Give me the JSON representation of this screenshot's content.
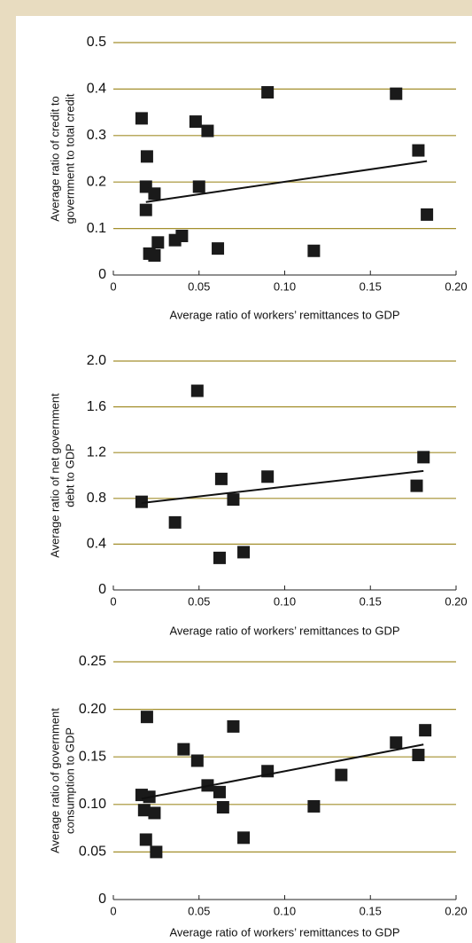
{
  "chart_data": [
    {
      "type": "scatter",
      "xlabel": "Average ratio of workers’ remittances to GDP",
      "ylabel": [
        "Average ratio of credit to",
        "government to total credit"
      ],
      "color": "#1a1a1a",
      "grid_color": "#a38f2d",
      "grid": true,
      "x": [
        0.0165,
        0.0196,
        0.019,
        0.019,
        0.024,
        0.021,
        0.024,
        0.026,
        0.036,
        0.04,
        0.048,
        0.05,
        0.055,
        0.061,
        0.09,
        0.117,
        0.165,
        0.178,
        0.183
      ],
      "y": [
        0.337,
        0.255,
        0.19,
        0.14,
        0.175,
        0.046,
        0.042,
        0.07,
        0.075,
        0.084,
        0.33,
        0.19,
        0.31,
        0.057,
        0.393,
        0.052,
        0.39,
        0.268,
        0.13
      ],
      "trendline": {
        "x": [
          0.019,
          0.183
        ],
        "y": [
          0.157,
          0.245
        ]
      },
      "xlim": [
        0,
        0.2
      ],
      "xticks": [
        0,
        0.05,
        {
          "value": 0.1,
          "label": "0.10"
        },
        0.15,
        {
          "value": 0.2,
          "label": "0.20"
        }
      ],
      "ylim": [
        0,
        0.5
      ],
      "yticks": [
        0,
        0.1,
        0.2,
        0.3,
        0.4,
        0.5
      ]
    },
    {
      "type": "scatter",
      "xlabel": "Average ratio of workers’ remittances to GDP",
      "ylabel": [
        "Average ratio of net government",
        "debt to GDP"
      ],
      "color": "#1a1a1a",
      "grid_color": "#a38f2d",
      "grid": true,
      "x": [
        0.0165,
        0.036,
        0.049,
        0.062,
        0.063,
        0.07,
        0.076,
        0.09,
        0.177,
        0.181
      ],
      "y": [
        0.77,
        0.59,
        1.74,
        0.28,
        0.97,
        0.79,
        0.33,
        0.99,
        0.91,
        1.16
      ],
      "trendline": {
        "x": [
          0.0165,
          0.181
        ],
        "y": [
          0.76,
          1.04
        ]
      },
      "xlim": [
        0,
        0.2
      ],
      "xticks": [
        0,
        0.05,
        {
          "value": 0.1,
          "label": "0.10"
        },
        0.15,
        {
          "value": 0.2,
          "label": "0.20"
        }
      ],
      "ylim": [
        0,
        2
      ],
      "yticks": [
        0,
        0.4,
        0.8,
        1.2,
        1.6,
        {
          "value": 2,
          "label": "2.0"
        }
      ]
    },
    {
      "type": "scatter",
      "xlabel": "Average ratio of workers’ remittances to GDP",
      "ylabel": [
        "Average ratio of government",
        "consumption to GDP"
      ],
      "color": "#1a1a1a",
      "grid_color": "#a38f2d",
      "grid": true,
      "x": [
        0.0165,
        0.0196,
        0.018,
        0.021,
        0.019,
        0.024,
        0.025,
        0.041,
        0.049,
        0.055,
        0.062,
        0.064,
        0.07,
        0.076,
        0.09,
        0.117,
        0.133,
        0.165,
        0.178,
        0.182
      ],
      "y": [
        0.11,
        0.192,
        0.094,
        0.108,
        0.063,
        0.091,
        0.05,
        0.158,
        0.146,
        0.12,
        0.113,
        0.097,
        0.182,
        0.065,
        0.135,
        0.098,
        0.131,
        0.165,
        0.152,
        0.178
      ],
      "trendline": {
        "x": [
          0.0165,
          0.181
        ],
        "y": [
          0.106,
          0.163
        ]
      },
      "xlim": [
        0,
        0.2
      ],
      "xticks": [
        0,
        0.05,
        {
          "value": 0.1,
          "label": "0.10"
        },
        0.15,
        {
          "value": 0.2,
          "label": "0.20"
        }
      ],
      "ylim": [
        0,
        0.25
      ],
      "yticks": [
        0,
        0.05,
        {
          "value": 0.1,
          "label": "0.10"
        },
        0.15,
        {
          "value": 0.2,
          "label": "0.20"
        },
        0.25
      ]
    }
  ]
}
